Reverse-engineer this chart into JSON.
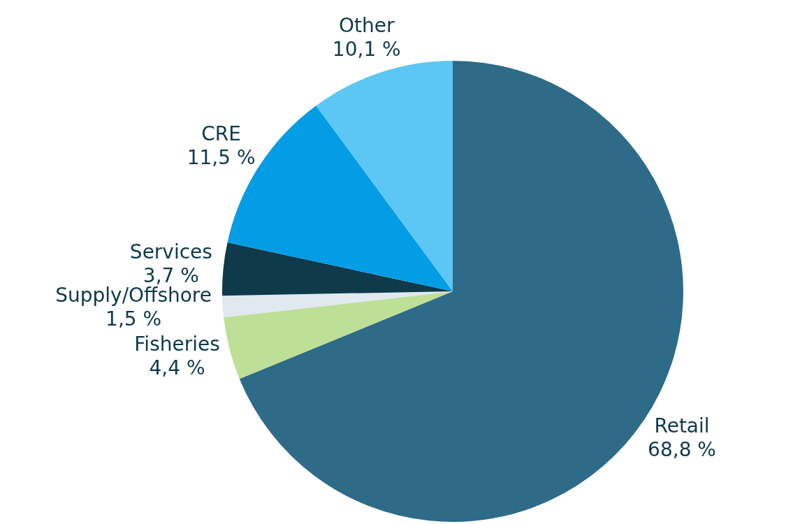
{
  "chart_data": {
    "type": "pie",
    "categories": [
      "Retail",
      "Fisheries",
      "Supply/Offshore",
      "Services",
      "CRE",
      "Other"
    ],
    "values": [
      68.8,
      4.4,
      1.5,
      3.7,
      11.5,
      10.1
    ],
    "colors": [
      "#2e6b88",
      "#bde096",
      "#e0e8f0",
      "#0e3a4a",
      "#039de6",
      "#5cc6f5"
    ],
    "value_labels": [
      "68,8 %",
      "4,4 %",
      "1,5 %",
      "3,7 %",
      "11,5 %",
      "10,1 %"
    ]
  }
}
